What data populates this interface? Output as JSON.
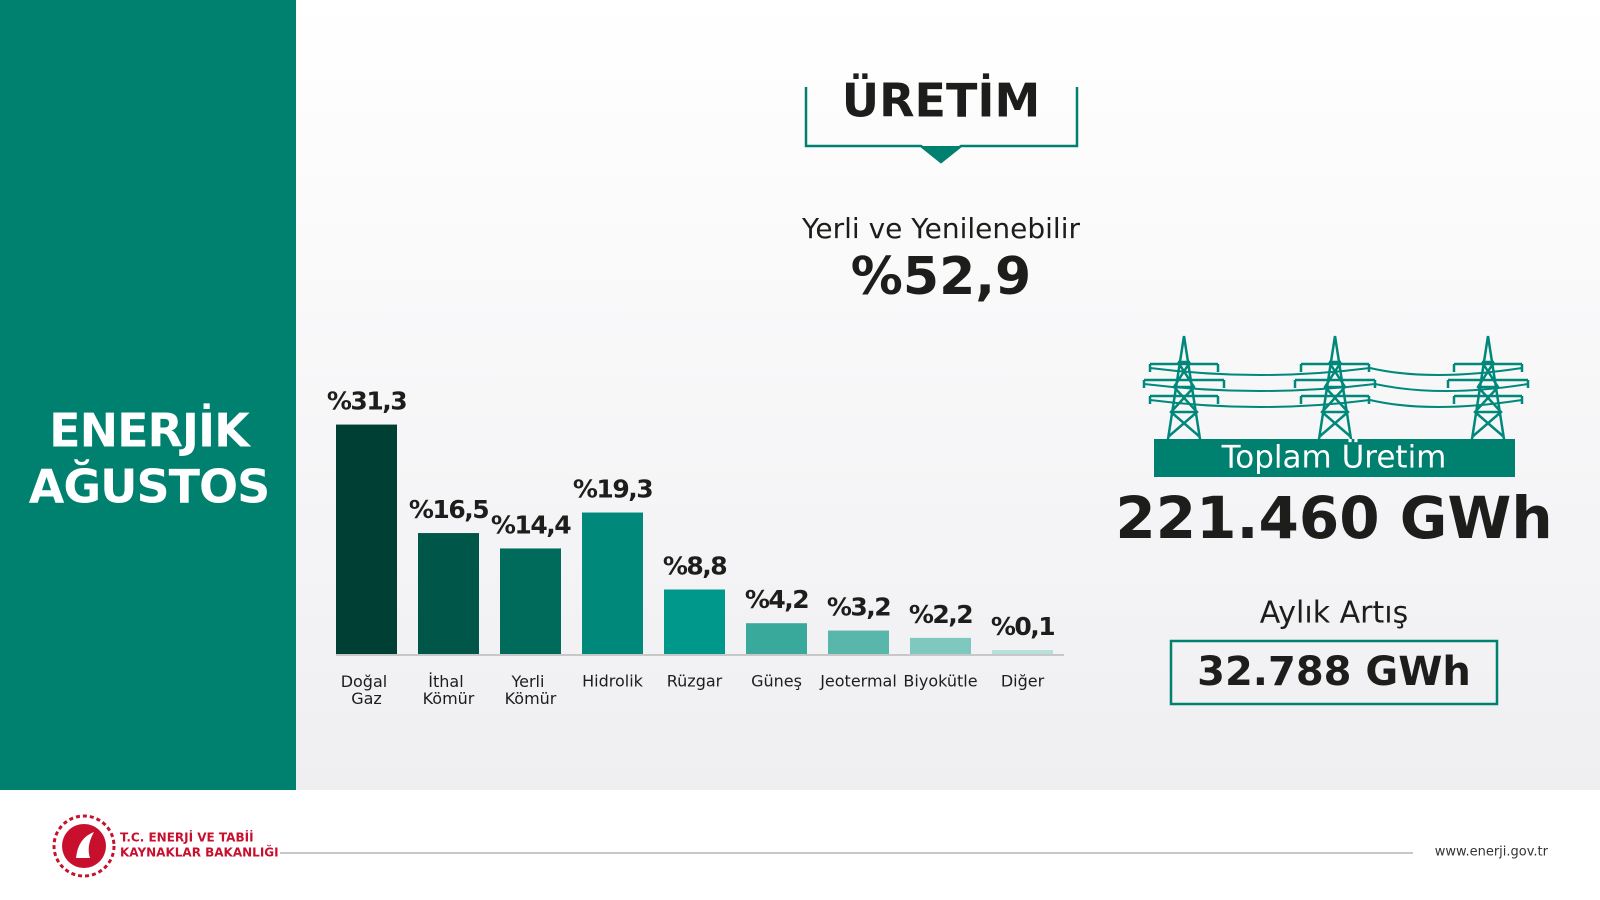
{
  "left_panel": {
    "title_lines": [
      "ENERJİK",
      "AĞUSTOS"
    ]
  },
  "header": {
    "title": "ÜRETİM",
    "subtitle": "Yerli ve Yenilenebilir",
    "highlight": "%52,9"
  },
  "chart_data": {
    "type": "bar",
    "categories": [
      "Doğal Gaz",
      "İthal Kömür",
      "Yerli Kömür",
      "Hidrolik",
      "Rüzgar",
      "Güneş",
      "Jeotermal",
      "Biyokütle",
      "Diğer"
    ],
    "values": [
      31.3,
      16.5,
      14.4,
      19.3,
      8.8,
      4.2,
      3.2,
      2.2,
      0.1
    ],
    "value_labels": [
      "%31,3",
      "%16,5",
      "%14,4",
      "%19,3",
      "%8,8",
      "%4,2",
      "%3,2",
      "%2,2",
      "%0,1"
    ],
    "colors": [
      "#003f34",
      "#005749",
      "#006a5b",
      "#00897a",
      "#00988a",
      "#38a99b",
      "#58b6ab",
      "#7fc8bf",
      "#b8e0da"
    ]
  },
  "summary": {
    "total_label": "Toplam Üretim",
    "total_value": "221.460 GWh",
    "increase_label": "Aylık Artış",
    "increase_value": "32.788 GWh"
  },
  "footer": {
    "org_lines": [
      "T.C. ENERJİ VE TABİİ",
      "KAYNAKLAR BAKANLIĞI"
    ],
    "url": "www.enerji.gov.tr"
  }
}
